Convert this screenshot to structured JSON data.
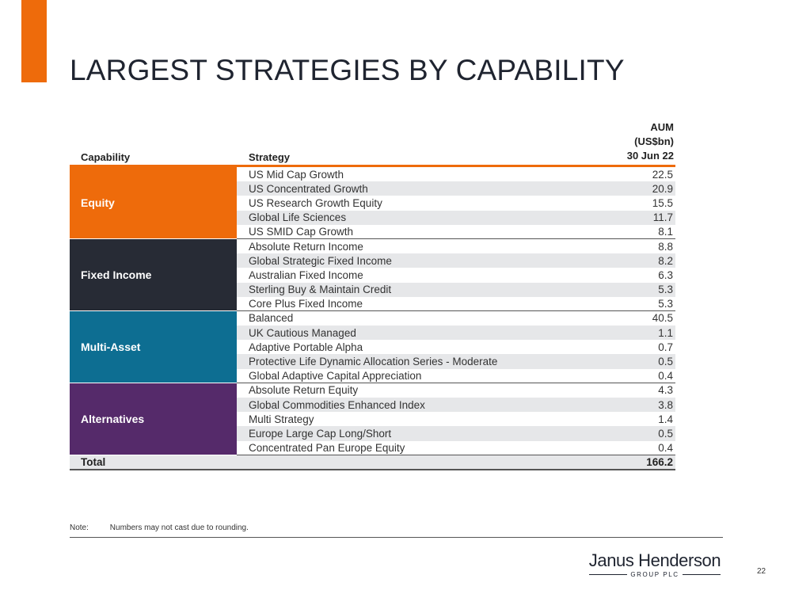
{
  "title": "LARGEST STRATEGIES BY CAPABILITY",
  "colors": {
    "accent": "#ee6b0b",
    "equity": "#ee6b0b",
    "fixed_income": "#272b35",
    "multi_asset": "#0d6e92",
    "alternatives": "#552a6a"
  },
  "table": {
    "header": {
      "capability": "Capability",
      "strategy": "Strategy",
      "aum_line1": "AUM",
      "aum_line2": "(US$bn)",
      "aum_line3": "30 Jun 22"
    },
    "groups": [
      {
        "capability": "Equity",
        "rows": [
          {
            "strategy": "US Mid Cap Growth",
            "aum": "22.5"
          },
          {
            "strategy": "US Concentrated Growth",
            "aum": "20.9"
          },
          {
            "strategy": "US Research Growth Equity",
            "aum": "15.5"
          },
          {
            "strategy": "Global Life Sciences",
            "aum": "11.7"
          },
          {
            "strategy": "US SMID Cap Growth",
            "aum": "8.1"
          }
        ]
      },
      {
        "capability": "Fixed Income",
        "rows": [
          {
            "strategy": "Absolute Return Income",
            "aum": "8.8"
          },
          {
            "strategy": "Global Strategic Fixed Income",
            "aum": "8.2"
          },
          {
            "strategy": "Australian Fixed Income",
            "aum": "6.3"
          },
          {
            "strategy": "Sterling Buy & Maintain Credit",
            "aum": "5.3"
          },
          {
            "strategy": "Core Plus Fixed Income",
            "aum": "5.3"
          }
        ]
      },
      {
        "capability": "Multi-Asset",
        "rows": [
          {
            "strategy": "Balanced",
            "aum": "40.5"
          },
          {
            "strategy": "UK Cautious Managed",
            "aum": "1.1"
          },
          {
            "strategy": "Adaptive Portable Alpha",
            "aum": "0.7"
          },
          {
            "strategy": "Protective Life Dynamic Allocation Series - Moderate",
            "aum": "0.5"
          },
          {
            "strategy": "Global Adaptive Capital Appreciation",
            "aum": "0.4"
          }
        ]
      },
      {
        "capability": "Alternatives",
        "rows": [
          {
            "strategy": "Absolute Return Equity",
            "aum": "4.3"
          },
          {
            "strategy": "Global Commodities Enhanced Index",
            "aum": "3.8"
          },
          {
            "strategy": "Multi Strategy",
            "aum": "1.4"
          },
          {
            "strategy": "Europe Large Cap Long/Short",
            "aum": "0.5"
          },
          {
            "strategy": "Concentrated Pan Europe Equity",
            "aum": "0.4"
          }
        ]
      }
    ],
    "total": {
      "label": "Total",
      "aum": "166.2"
    }
  },
  "note": {
    "label": "Note:",
    "text": "Numbers may not cast due to rounding."
  },
  "logo": {
    "main": "Janus Henderson",
    "sub": "GROUP PLC"
  },
  "page_number": "22"
}
